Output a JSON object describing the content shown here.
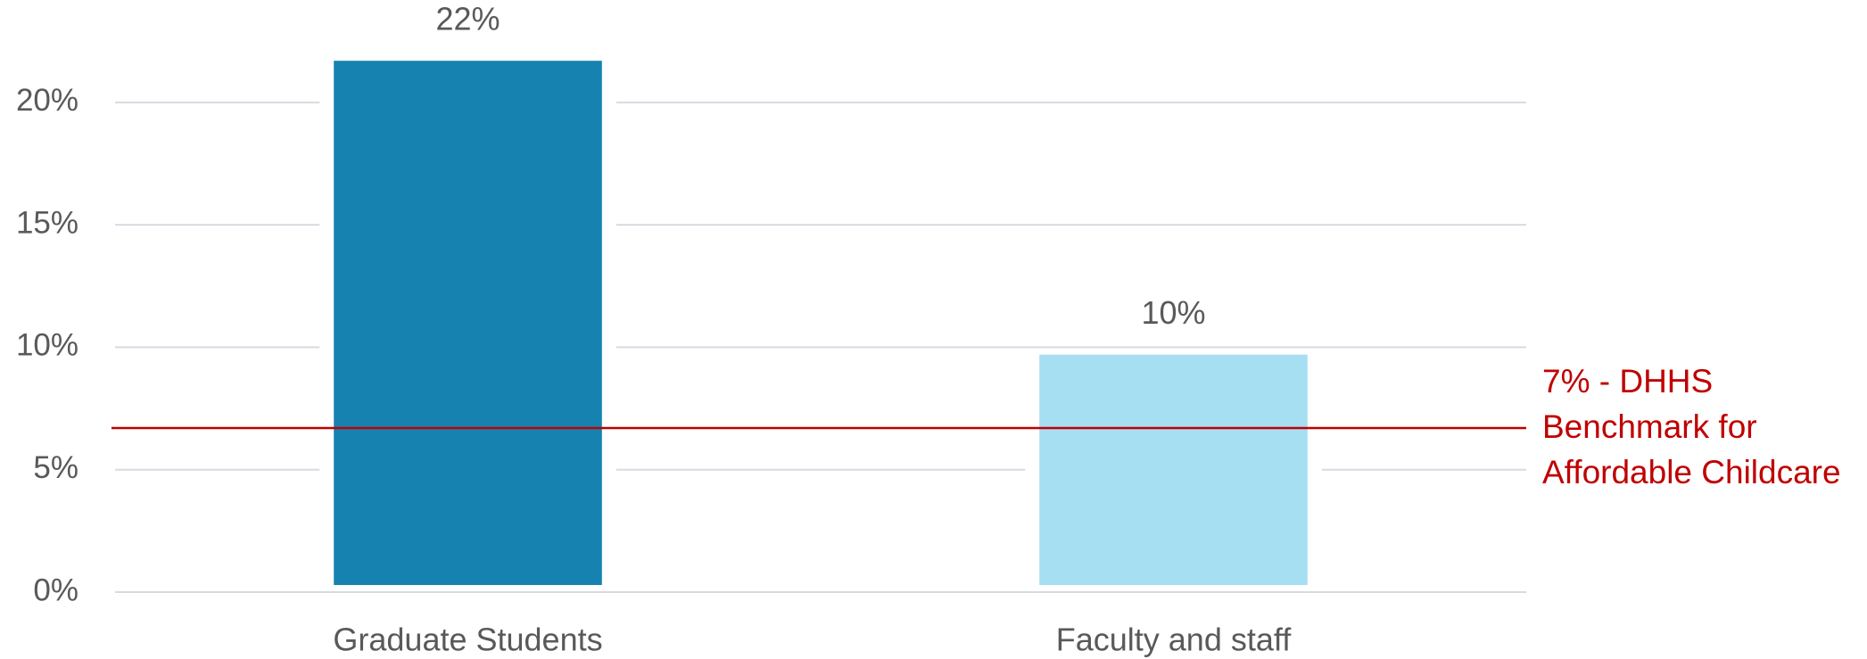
{
  "chart_data": {
    "type": "bar",
    "categories": [
      "Graduate Students",
      "Faculty and staff"
    ],
    "series": [
      {
        "values": [
          21.7,
          9.7
        ],
        "value_labels": [
          "22%",
          "10%"
        ],
        "colors": [
          "#1682b0",
          "#a6def2"
        ]
      }
    ],
    "ylim": [
      0,
      24
    ],
    "yticks": [
      {
        "value": 0,
        "label": "0%"
      },
      {
        "value": 5,
        "label": "5%"
      },
      {
        "value": 10,
        "label": "10%"
      },
      {
        "value": 15,
        "label": "15%"
      },
      {
        "value": 20,
        "label": "20%"
      }
    ],
    "grid": true,
    "benchmark": {
      "value": 6.7,
      "color": "#c00000",
      "label": [
        "7% - DHHS",
        "Benchmark for",
        "Affordable Childcare"
      ]
    }
  }
}
